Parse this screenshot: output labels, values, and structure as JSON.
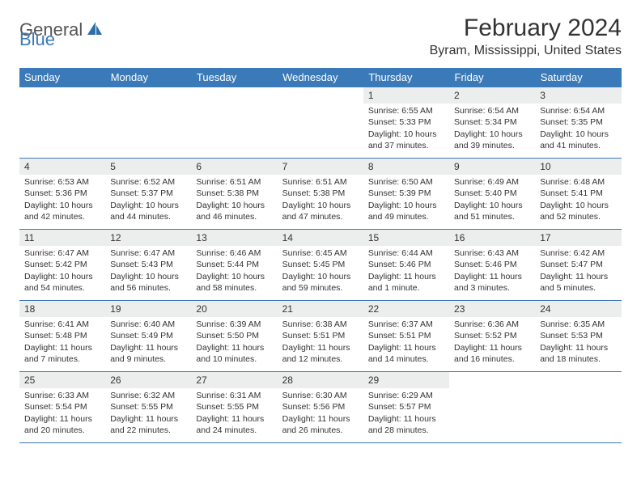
{
  "brand": {
    "general": "General",
    "blue": "Blue"
  },
  "title": "February 2024",
  "location": "Byram, Mississippi, United States",
  "colors": {
    "header_bg": "#3a7ab8",
    "header_text": "#ffffff",
    "daynum_bg": "#eceded",
    "rule": "#3a7ab8",
    "text": "#333333"
  },
  "day_headers": [
    "Sunday",
    "Monday",
    "Tuesday",
    "Wednesday",
    "Thursday",
    "Friday",
    "Saturday"
  ],
  "weeks": [
    [
      {
        "n": "",
        "sr": "",
        "ss": "",
        "dl1": "",
        "dl2": ""
      },
      {
        "n": "",
        "sr": "",
        "ss": "",
        "dl1": "",
        "dl2": ""
      },
      {
        "n": "",
        "sr": "",
        "ss": "",
        "dl1": "",
        "dl2": ""
      },
      {
        "n": "",
        "sr": "",
        "ss": "",
        "dl1": "",
        "dl2": ""
      },
      {
        "n": "1",
        "sr": "Sunrise: 6:55 AM",
        "ss": "Sunset: 5:33 PM",
        "dl1": "Daylight: 10 hours",
        "dl2": "and 37 minutes."
      },
      {
        "n": "2",
        "sr": "Sunrise: 6:54 AM",
        "ss": "Sunset: 5:34 PM",
        "dl1": "Daylight: 10 hours",
        "dl2": "and 39 minutes."
      },
      {
        "n": "3",
        "sr": "Sunrise: 6:54 AM",
        "ss": "Sunset: 5:35 PM",
        "dl1": "Daylight: 10 hours",
        "dl2": "and 41 minutes."
      }
    ],
    [
      {
        "n": "4",
        "sr": "Sunrise: 6:53 AM",
        "ss": "Sunset: 5:36 PM",
        "dl1": "Daylight: 10 hours",
        "dl2": "and 42 minutes."
      },
      {
        "n": "5",
        "sr": "Sunrise: 6:52 AM",
        "ss": "Sunset: 5:37 PM",
        "dl1": "Daylight: 10 hours",
        "dl2": "and 44 minutes."
      },
      {
        "n": "6",
        "sr": "Sunrise: 6:51 AM",
        "ss": "Sunset: 5:38 PM",
        "dl1": "Daylight: 10 hours",
        "dl2": "and 46 minutes."
      },
      {
        "n": "7",
        "sr": "Sunrise: 6:51 AM",
        "ss": "Sunset: 5:38 PM",
        "dl1": "Daylight: 10 hours",
        "dl2": "and 47 minutes."
      },
      {
        "n": "8",
        "sr": "Sunrise: 6:50 AM",
        "ss": "Sunset: 5:39 PM",
        "dl1": "Daylight: 10 hours",
        "dl2": "and 49 minutes."
      },
      {
        "n": "9",
        "sr": "Sunrise: 6:49 AM",
        "ss": "Sunset: 5:40 PM",
        "dl1": "Daylight: 10 hours",
        "dl2": "and 51 minutes."
      },
      {
        "n": "10",
        "sr": "Sunrise: 6:48 AM",
        "ss": "Sunset: 5:41 PM",
        "dl1": "Daylight: 10 hours",
        "dl2": "and 52 minutes."
      }
    ],
    [
      {
        "n": "11",
        "sr": "Sunrise: 6:47 AM",
        "ss": "Sunset: 5:42 PM",
        "dl1": "Daylight: 10 hours",
        "dl2": "and 54 minutes."
      },
      {
        "n": "12",
        "sr": "Sunrise: 6:47 AM",
        "ss": "Sunset: 5:43 PM",
        "dl1": "Daylight: 10 hours",
        "dl2": "and 56 minutes."
      },
      {
        "n": "13",
        "sr": "Sunrise: 6:46 AM",
        "ss": "Sunset: 5:44 PM",
        "dl1": "Daylight: 10 hours",
        "dl2": "and 58 minutes."
      },
      {
        "n": "14",
        "sr": "Sunrise: 6:45 AM",
        "ss": "Sunset: 5:45 PM",
        "dl1": "Daylight: 10 hours",
        "dl2": "and 59 minutes."
      },
      {
        "n": "15",
        "sr": "Sunrise: 6:44 AM",
        "ss": "Sunset: 5:46 PM",
        "dl1": "Daylight: 11 hours",
        "dl2": "and 1 minute."
      },
      {
        "n": "16",
        "sr": "Sunrise: 6:43 AM",
        "ss": "Sunset: 5:46 PM",
        "dl1": "Daylight: 11 hours",
        "dl2": "and 3 minutes."
      },
      {
        "n": "17",
        "sr": "Sunrise: 6:42 AM",
        "ss": "Sunset: 5:47 PM",
        "dl1": "Daylight: 11 hours",
        "dl2": "and 5 minutes."
      }
    ],
    [
      {
        "n": "18",
        "sr": "Sunrise: 6:41 AM",
        "ss": "Sunset: 5:48 PM",
        "dl1": "Daylight: 11 hours",
        "dl2": "and 7 minutes."
      },
      {
        "n": "19",
        "sr": "Sunrise: 6:40 AM",
        "ss": "Sunset: 5:49 PM",
        "dl1": "Daylight: 11 hours",
        "dl2": "and 9 minutes."
      },
      {
        "n": "20",
        "sr": "Sunrise: 6:39 AM",
        "ss": "Sunset: 5:50 PM",
        "dl1": "Daylight: 11 hours",
        "dl2": "and 10 minutes."
      },
      {
        "n": "21",
        "sr": "Sunrise: 6:38 AM",
        "ss": "Sunset: 5:51 PM",
        "dl1": "Daylight: 11 hours",
        "dl2": "and 12 minutes."
      },
      {
        "n": "22",
        "sr": "Sunrise: 6:37 AM",
        "ss": "Sunset: 5:51 PM",
        "dl1": "Daylight: 11 hours",
        "dl2": "and 14 minutes."
      },
      {
        "n": "23",
        "sr": "Sunrise: 6:36 AM",
        "ss": "Sunset: 5:52 PM",
        "dl1": "Daylight: 11 hours",
        "dl2": "and 16 minutes."
      },
      {
        "n": "24",
        "sr": "Sunrise: 6:35 AM",
        "ss": "Sunset: 5:53 PM",
        "dl1": "Daylight: 11 hours",
        "dl2": "and 18 minutes."
      }
    ],
    [
      {
        "n": "25",
        "sr": "Sunrise: 6:33 AM",
        "ss": "Sunset: 5:54 PM",
        "dl1": "Daylight: 11 hours",
        "dl2": "and 20 minutes."
      },
      {
        "n": "26",
        "sr": "Sunrise: 6:32 AM",
        "ss": "Sunset: 5:55 PM",
        "dl1": "Daylight: 11 hours",
        "dl2": "and 22 minutes."
      },
      {
        "n": "27",
        "sr": "Sunrise: 6:31 AM",
        "ss": "Sunset: 5:55 PM",
        "dl1": "Daylight: 11 hours",
        "dl2": "and 24 minutes."
      },
      {
        "n": "28",
        "sr": "Sunrise: 6:30 AM",
        "ss": "Sunset: 5:56 PM",
        "dl1": "Daylight: 11 hours",
        "dl2": "and 26 minutes."
      },
      {
        "n": "29",
        "sr": "Sunrise: 6:29 AM",
        "ss": "Sunset: 5:57 PM",
        "dl1": "Daylight: 11 hours",
        "dl2": "and 28 minutes."
      },
      {
        "n": "",
        "sr": "",
        "ss": "",
        "dl1": "",
        "dl2": ""
      },
      {
        "n": "",
        "sr": "",
        "ss": "",
        "dl1": "",
        "dl2": ""
      }
    ]
  ]
}
